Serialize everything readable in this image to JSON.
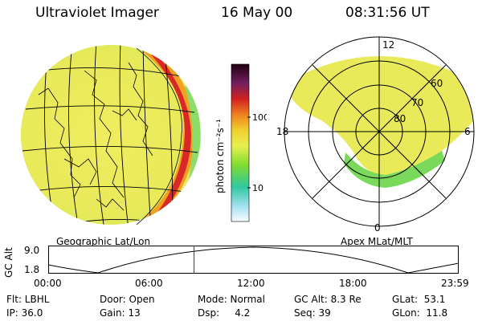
{
  "header": {
    "instrument": "Ultraviolet Imager",
    "date": "16 May 00",
    "time": "08:31:56 UT"
  },
  "map_left": {
    "caption": "Geographic Lat/Lon"
  },
  "map_right": {
    "caption": "Apex MLat/MLT",
    "mlt_labels": {
      "top": "12",
      "left": "18",
      "right": "6",
      "bottom": "0"
    },
    "lat_labels": [
      "60",
      "70",
      "80"
    ]
  },
  "colorbar": {
    "unit_label": "photon cm⁻²s⁻¹",
    "ticks": [
      "100",
      "10"
    ]
  },
  "altitude": {
    "axis_label": "GC Alt",
    "ticks": [
      "9.0",
      "1.8"
    ],
    "time_ticks": [
      "00:00",
      "06:00",
      "12:00",
      "18:00",
      "23:59"
    ],
    "marker_fraction": 0.354,
    "marker_color": "#cc0000"
  },
  "info": {
    "flt": "Flt: LBHL",
    "ip": "IP: 36.0",
    "door": "Door: Open",
    "gain": "Gain: 13",
    "mode": "Mode: Normal",
    "dsp": "Dsp:     4.2",
    "gcalt": "GC Alt: 8.3 Re",
    "seq": "Seq: 39",
    "glat": "GLat:  53.1",
    "glon": "GLon:  11.8"
  }
}
